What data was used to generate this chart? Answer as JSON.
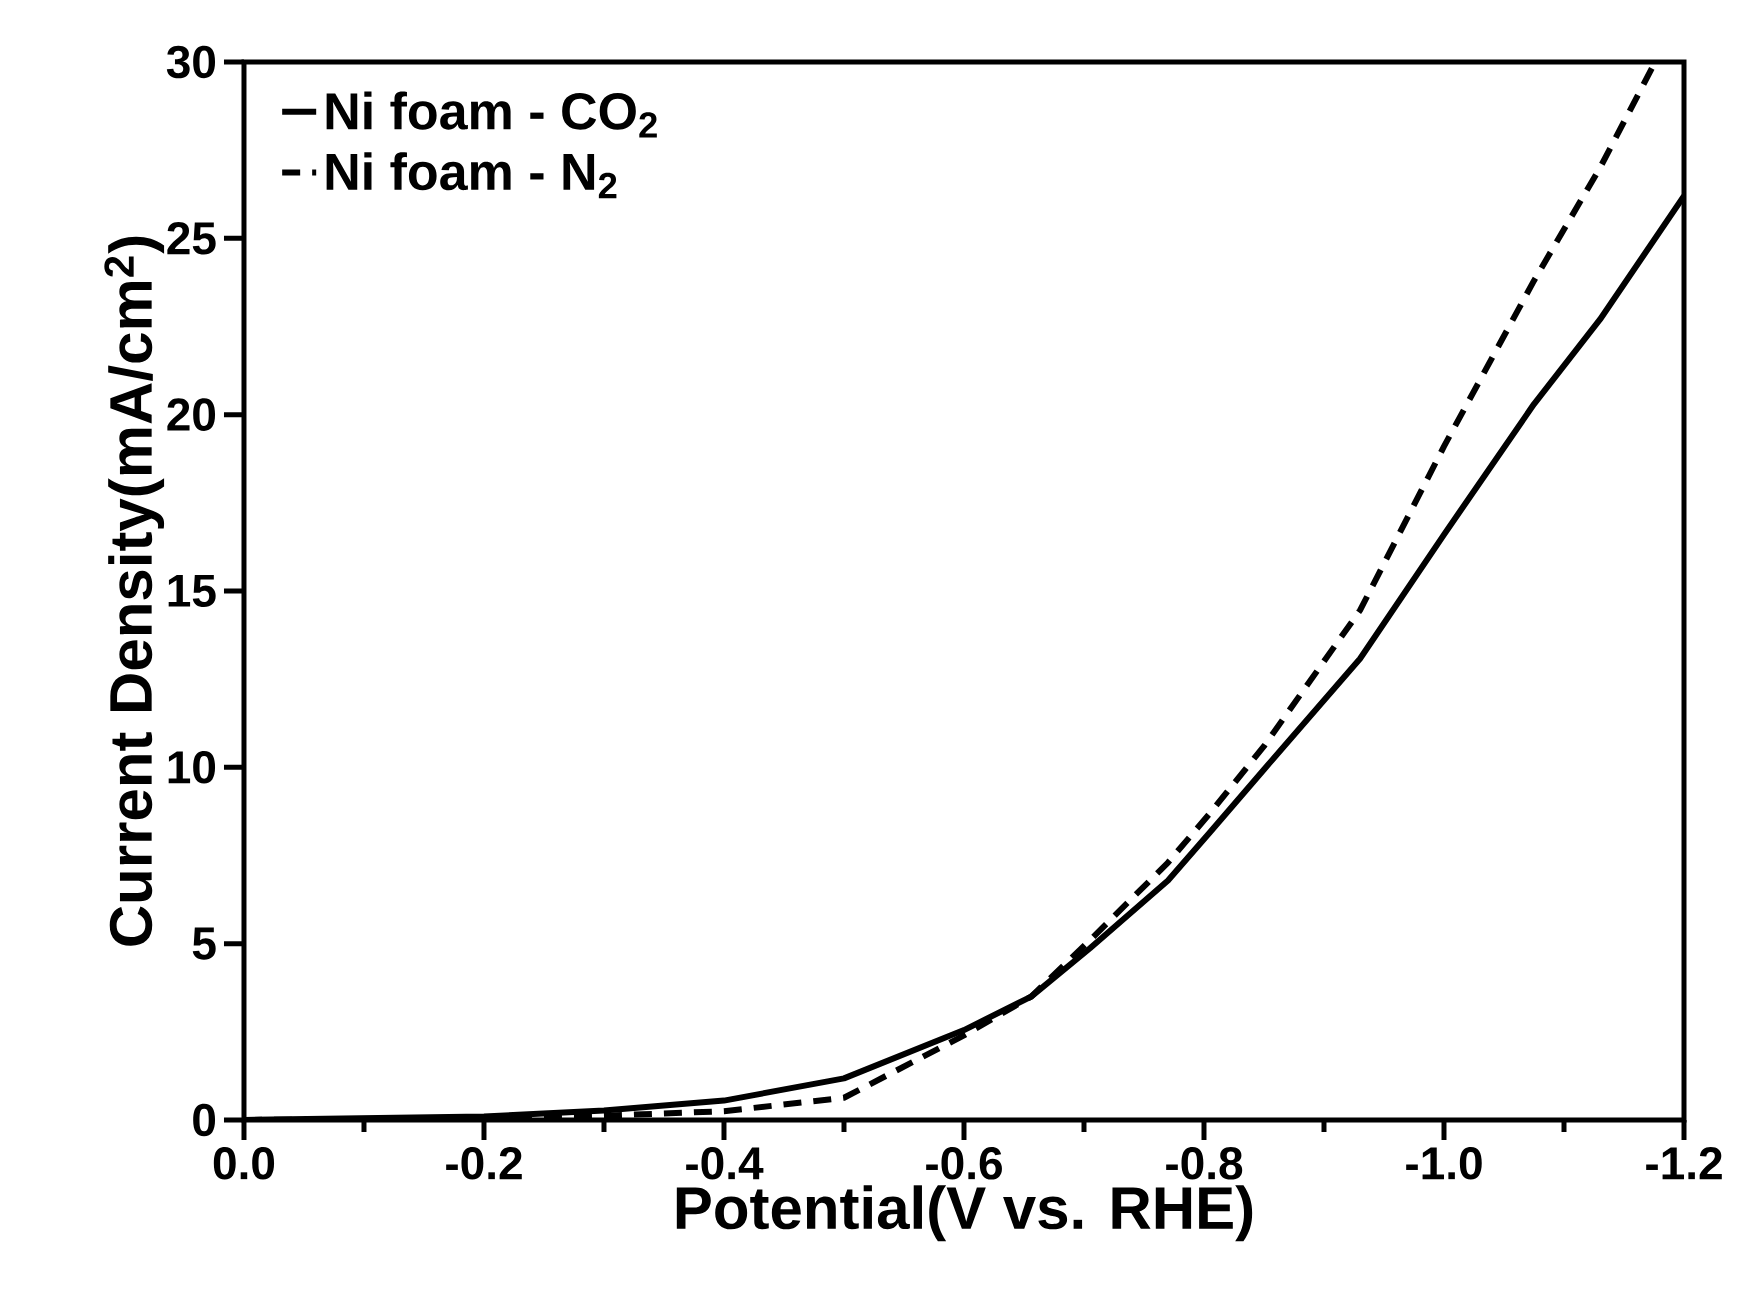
{
  "chart_data": {
    "type": "line",
    "xlabel": "Potential(V vs. RHE)",
    "ylabel": "Current Density(mA/cm$^{2}$)",
    "xlim": [
      0,
      -1.2
    ],
    "ylim": [
      0,
      30
    ],
    "xticks": [
      {
        "value": 0,
        "label": "0.0"
      },
      {
        "value": -0.2,
        "label": "-0.2"
      },
      {
        "value": -0.4,
        "label": "-0.4"
      },
      {
        "value": -0.6,
        "label": "-0.6"
      },
      {
        "value": -0.8,
        "label": "-0.8"
      },
      {
        "value": -1.0,
        "label": "-1.0"
      },
      {
        "value": -1.2,
        "label": "-1.2"
      }
    ],
    "yticks": [
      0,
      5,
      10,
      15,
      20,
      25,
      30
    ],
    "grid": false,
    "legend": "top left",
    "marker": "none",
    "series": [
      {
        "name": "Ni foam - CO$_{2}$",
        "color": "#000000",
        "line_style": "solid",
        "x": [
          0,
          -0.2,
          -0.3,
          -0.4,
          -0.5,
          -0.6,
          -0.656,
          -0.705,
          -0.77,
          -0.805,
          -0.85,
          -0.93,
          -1.0,
          -1.075,
          -1.13,
          -1.2
        ],
        "values": [
          0,
          0.1,
          0.27,
          0.55,
          1.18,
          2.55,
          3.5,
          4.87,
          6.79,
          8.16,
          9.94,
          13.08,
          16.6,
          20.3,
          22.7,
          26.2
        ]
      },
      {
        "name": "Ni foam - N$_{2}$",
        "color": "#000000",
        "line_style": "dashed",
        "x": [
          0,
          -0.2,
          -0.3,
          -0.4,
          -0.5,
          -0.6,
          -0.656,
          -0.705,
          -0.77,
          -0.805,
          -0.85,
          -0.93,
          -1.0,
          -1.075,
          -1.13,
          -1.176
        ],
        "values": [
          0,
          0.05,
          0.12,
          0.25,
          0.63,
          2.4,
          3.5,
          5.1,
          7.3,
          8.7,
          10.6,
          14.45,
          19.1,
          23.8,
          27.0,
          30.0
        ]
      }
    ]
  }
}
